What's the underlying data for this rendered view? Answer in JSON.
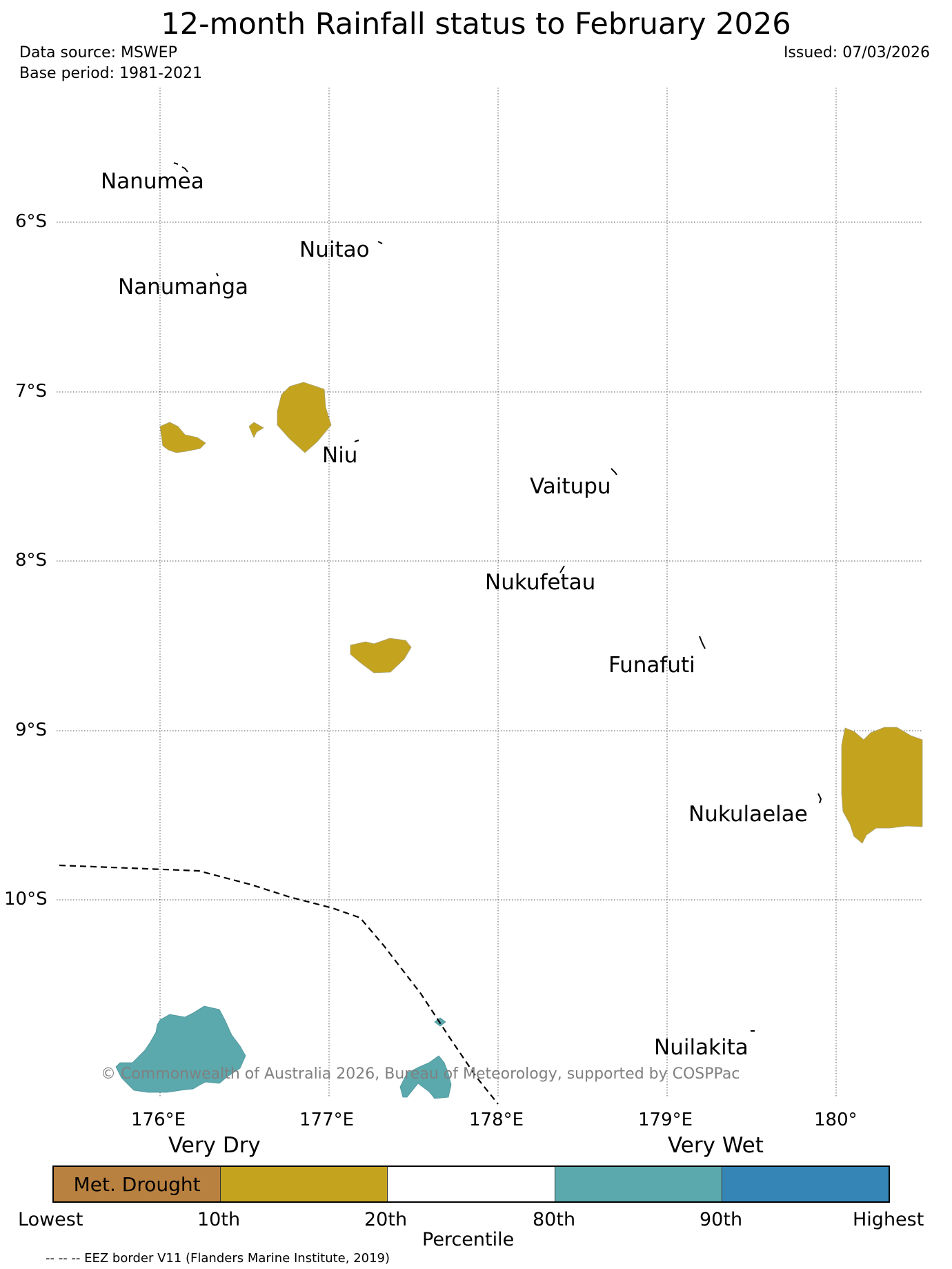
{
  "title": "12-month Rainfall status to February 2026",
  "data_source": "Data source: MSWEP",
  "base_period": "Base period: 1981-2021",
  "issued": "Issued: 07/03/2026",
  "copyright": "© Commonwealth of Australia 2026, Bureau of Meteorology, supported by COSPPac",
  "lat_labels": [
    "6°S",
    "7°S",
    "8°S",
    "9°S",
    "10°S"
  ],
  "lon_labels": [
    "176°E",
    "177°E",
    "178°E",
    "179°E",
    "180°"
  ],
  "islands": [
    "Nanumea",
    "Nuitao",
    "Nanumanga",
    "Niu",
    "Vaitupu",
    "Nukufetau",
    "Funafuti",
    "Nukulaelae",
    "Nuilakita"
  ],
  "legend": {
    "very_dry": "Very Dry",
    "very_wet": "Very Wet",
    "categories": [
      {
        "label": "Met. Drought",
        "color": "#b98140"
      },
      {
        "label": "",
        "color": "#c4a41f"
      },
      {
        "label": "",
        "color": "#ffffff"
      },
      {
        "label": "",
        "color": "#5ba8ad"
      },
      {
        "label": "",
        "color": "#3586b7"
      }
    ],
    "ticks": [
      "Lowest",
      "10th",
      "20th",
      "80th",
      "90th",
      "Highest"
    ],
    "axis_label": "Percentile"
  },
  "eez_note": "-- -- -- EEZ border V11 (Flanders Marine Institute, 2019)",
  "colors": {
    "dry": "#c4a41f",
    "wet": "#5ba8ad",
    "gridline": "#555555"
  }
}
